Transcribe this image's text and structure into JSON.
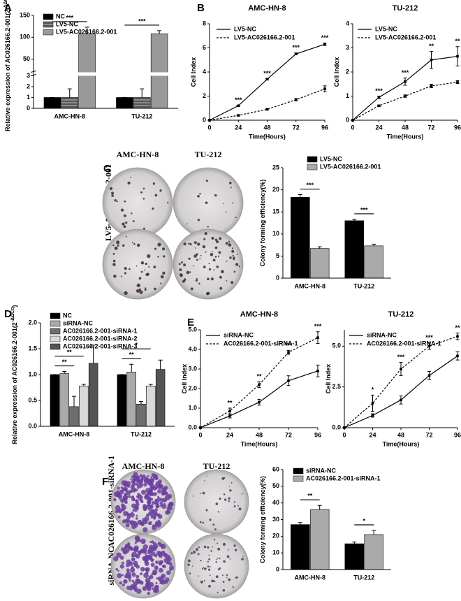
{
  "panels": [
    "A",
    "B",
    "C",
    "D",
    "E",
    "F"
  ],
  "photos": [
    {
      "columns": [
        "AMC-HN-8",
        "TU-212"
      ],
      "rows": [
        "LV5-AC026166.2-001",
        "LV5-NC"
      ]
    },
    {
      "columns": [
        "AMC-HN-8",
        "TU-212"
      ],
      "rows": [
        "AC026166.2-001-siRNA-1",
        "siRNA-NC"
      ]
    }
  ],
  "chart_data": [
    {
      "type": "bar",
      "ylabel": "Relative expression of AC026166.2-001(2",
      "ylabel_sup": "-ΔΔCq",
      "ylabel_end": ")",
      "categories": [
        "AMC-HN-8",
        "TU-212"
      ],
      "ylim": [
        0,
        150
      ],
      "ybreak": [
        3,
        20
      ],
      "yticks": [
        0,
        1,
        2,
        3,
        50,
        100,
        150
      ],
      "legend": "upper left",
      "series": [
        {
          "name": "NC",
          "color": "#000000",
          "values": [
            1,
            1
          ],
          "errors": [
            0,
            0
          ]
        },
        {
          "name": "LV5-NC",
          "color": "#8c8c8c",
          "hatch": true,
          "values": [
            1,
            1
          ],
          "errors": [
            0.8,
            0.8
          ]
        },
        {
          "name": "LV5-AC026166.2-001",
          "color": "#999999",
          "values": [
            108,
            108
          ],
          "errors": [
            15,
            7
          ]
        }
      ],
      "significance": [
        "***",
        "***"
      ]
    },
    {
      "type": "line",
      "title": "AMC-HN-8",
      "xlabel": "Time(Hours)",
      "ylabel": "Cell Index",
      "x": [
        0,
        24,
        48,
        72,
        96
      ],
      "xlim": [
        0,
        96
      ],
      "xticks": [
        0,
        24,
        48,
        72,
        96
      ],
      "ylim": [
        0,
        8
      ],
      "yticks": [
        0,
        2,
        4,
        6,
        8
      ],
      "legend": "upper left",
      "series": [
        {
          "name": "LV5-NC",
          "color": "#000000",
          "values": [
            0,
            1.2,
            3.4,
            5.5,
            6.3
          ],
          "errors": [
            0,
            0.05,
            0.05,
            0.08,
            0.1
          ]
        },
        {
          "name": "LV5-AC026166.2-001",
          "color": "#000000",
          "dashed": true,
          "values": [
            0,
            0.4,
            0.9,
            1.7,
            2.6
          ],
          "errors": [
            0,
            0.05,
            0.05,
            0.1,
            0.25
          ]
        }
      ],
      "significance": [
        null,
        "***",
        "***",
        "***",
        "***"
      ]
    },
    {
      "type": "line",
      "title": "TU-212",
      "xlabel": "Time(Hours)",
      "ylabel": "Cell Index",
      "x": [
        0,
        24,
        48,
        72,
        96
      ],
      "xlim": [
        0,
        96
      ],
      "xticks": [
        0,
        24,
        48,
        72,
        96
      ],
      "ylim": [
        0,
        4
      ],
      "yticks": [
        0,
        1,
        2,
        3,
        4
      ],
      "legend": "upper left",
      "series": [
        {
          "name": "LV5-NC",
          "color": "#000000",
          "values": [
            0,
            0.95,
            1.6,
            2.5,
            2.65
          ],
          "errors": [
            0,
            0.05,
            0.15,
            0.35,
            0.4
          ]
        },
        {
          "name": "LV5-AC026166.2-001",
          "color": "#000000",
          "dashed": true,
          "values": [
            0,
            0.6,
            1.0,
            1.42,
            1.58
          ],
          "errors": [
            0,
            0.03,
            0.05,
            0.07,
            0.06
          ]
        }
      ],
      "significance": [
        null,
        "***",
        "***",
        "**",
        "**"
      ]
    },
    {
      "type": "bar",
      "ylabel": "Colony forming efficiency(%)",
      "categories": [
        "AMC-HN-8",
        "TU-212"
      ],
      "ylim": [
        0,
        25
      ],
      "yticks": [
        0,
        5,
        10,
        15,
        20,
        25
      ],
      "legend": "upper right",
      "series": [
        {
          "name": "LV5-NC",
          "color": "#000000",
          "values": [
            18.3,
            13.0
          ],
          "errors": [
            0.6,
            0.3
          ]
        },
        {
          "name": "LV5-AC026166.2-001",
          "color": "#aaaaaa",
          "values": [
            6.7,
            7.3
          ],
          "errors": [
            0.4,
            0.4
          ]
        }
      ],
      "significance": [
        "***",
        "***"
      ]
    },
    {
      "type": "bar",
      "ylabel": "Relative expression of AC026166.2-001(2",
      "ylabel_sup": "-ΔΔCq",
      "ylabel_end": ")",
      "categories": [
        "AMC-HN-8",
        "TU-212"
      ],
      "ylim": [
        0,
        2
      ],
      "yticks": [
        {
          "value": 0,
          "label": "0.0"
        },
        0.5,
        {
          "value": 1,
          "label": "1.0"
        },
        1.5,
        {
          "value": 2,
          "label": "2.0"
        }
      ],
      "legend": "upper left",
      "series": [
        {
          "name": "NC",
          "color": "#000000",
          "values": [
            1.0,
            1.0
          ],
          "errors": [
            0,
            0
          ]
        },
        {
          "name": "siRNA-NC",
          "color": "#aaaaaa",
          "values": [
            1.02,
            1.05
          ],
          "errors": [
            0.04,
            0.15
          ]
        },
        {
          "name": "AC026166.2-001-siRNA-1",
          "color": "#6e6e6e",
          "values": [
            0.38,
            0.43
          ],
          "errors": [
            0.2,
            0.05
          ]
        },
        {
          "name": "AC026166.2-001-siRNA-2",
          "color": "#d9d9d9",
          "values": [
            0.78,
            0.78
          ],
          "errors": [
            0.03,
            0.03
          ]
        },
        {
          "name": "AC026166.2-001-siRNA-3",
          "color": "#555555",
          "values": [
            1.22,
            1.1
          ],
          "errors": [
            0.35,
            0.18
          ]
        }
      ],
      "significance": [
        [
          "**",
          "**"
        ],
        [
          "*",
          "**"
        ]
      ]
    },
    {
      "type": "line",
      "title": "AMC-HN-8",
      "xlabel": "Time(Hours)",
      "ylabel": "Cell Index",
      "x": [
        0,
        24,
        48,
        72,
        96
      ],
      "xlim": [
        0,
        96
      ],
      "xticks": [
        0,
        24,
        48,
        72,
        96
      ],
      "ylim": [
        0,
        5
      ],
      "yticks": [
        {
          "value": 0,
          "label": "0.0"
        },
        {
          "value": 1,
          "label": "1.0"
        },
        {
          "value": 2,
          "label": "2.0"
        },
        {
          "value": 3,
          "label": "3.0"
        },
        {
          "value": 4,
          "label": "4.0"
        },
        {
          "value": 5,
          "label": "5.0"
        }
      ],
      "legend": "upper left",
      "series": [
        {
          "name": "siRNA-NC",
          "color": "#000000",
          "values": [
            0,
            0.6,
            1.3,
            2.4,
            2.9
          ],
          "errors": [
            0,
            0.1,
            0.15,
            0.25,
            0.3
          ]
        },
        {
          "name": "AC026166.2-001-siRNA-1",
          "color": "#000000",
          "dashed": true,
          "values": [
            0,
            0.85,
            2.2,
            3.85,
            4.6
          ],
          "errors": [
            0,
            0.15,
            0.15,
            0.1,
            0.3
          ]
        }
      ],
      "significance": [
        null,
        "**",
        "**",
        "***",
        "***"
      ]
    },
    {
      "type": "line",
      "title": "TU-212",
      "xlabel": "Time(Hours)",
      "ylabel": "Cell Index",
      "x": [
        0,
        24,
        48,
        72,
        96
      ],
      "xlim": [
        0,
        96
      ],
      "xticks": [
        0,
        24,
        48,
        72,
        96
      ],
      "ylim": [
        0,
        6
      ],
      "yticks": [
        {
          "value": 0,
          "label": "0.0"
        },
        2.5,
        {
          "value": 5,
          "label": "5.0"
        }
      ],
      "legend": "upper left",
      "series": [
        {
          "name": "siRNA-NC",
          "color": "#000000",
          "values": [
            0,
            0.75,
            1.7,
            3.2,
            4.4
          ],
          "errors": [
            0,
            0.1,
            0.25,
            0.25,
            0.25
          ]
        },
        {
          "name": "AC026166.2-001-siRNA-1",
          "color": "#000000",
          "dashed": true,
          "values": [
            0,
            1.5,
            3.6,
            5.0,
            5.6
          ],
          "errors": [
            0,
            0.5,
            0.4,
            0.2,
            0.2
          ]
        }
      ],
      "significance": [
        null,
        "*",
        "***",
        "***",
        "**"
      ]
    },
    {
      "type": "bar",
      "ylabel": "Colony forming efficiency(%)",
      "categories": [
        "AMC-HN-8",
        "TU-212"
      ],
      "ylim": [
        0,
        60
      ],
      "yticks": [
        0,
        10,
        20,
        30,
        40,
        50,
        60
      ],
      "legend": "upper left",
      "series": [
        {
          "name": "siRNA-NC",
          "color": "#000000",
          "values": [
            27,
            15.5
          ],
          "errors": [
            1.2,
            1
          ]
        },
        {
          "name": "AC026166.2-001-siRNA-1",
          "color": "#aaaaaa",
          "values": [
            36,
            21
          ],
          "errors": [
            2.5,
            2.5
          ]
        }
      ],
      "significance": [
        "**",
        "*"
      ]
    }
  ]
}
